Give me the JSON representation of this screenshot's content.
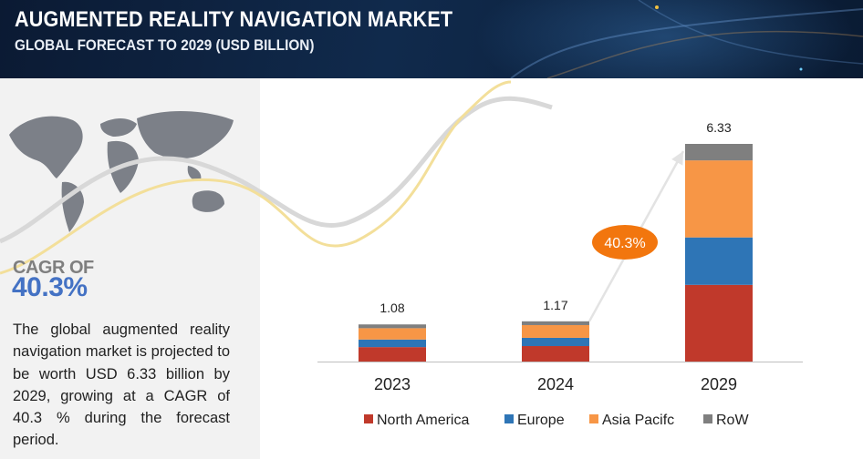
{
  "header": {
    "title": "AUGMENTED REALITY NAVIGATION MARKET",
    "subtitle": "GLOBAL FORECAST TO 2029 (USD BILLION)"
  },
  "sidebar": {
    "cagr_label": "CAGR OF",
    "cagr_value": "40.3%",
    "description": "The global augmented reality navigation market is projected to be worth USD 6.33 billion by 2029, growing at a CAGR of 40.3 % during the forecast period."
  },
  "colors": {
    "header_bg": "#0f2340",
    "north_america": "#c0392b",
    "europe": "#2e75b6",
    "asia_pacific": "#f79646",
    "row": "#7f7f7f",
    "cagr_badge": "#f2760e",
    "cagr_text": "#4472c4"
  },
  "chart_data": {
    "type": "bar",
    "stacked": true,
    "categories": [
      "2023",
      "2024",
      "2029"
    ],
    "totals": [
      "1.08",
      "1.17",
      "6.33"
    ],
    "series": [
      {
        "name": "North America",
        "color": "#c0392b",
        "values": [
          0.42,
          0.45,
          2.23
        ]
      },
      {
        "name": "Europe",
        "color": "#2e75b6",
        "values": [
          0.22,
          0.24,
          1.38
        ]
      },
      {
        "name": "Asia Pacifc",
        "color": "#f79646",
        "values": [
          0.33,
          0.37,
          2.24
        ]
      },
      {
        "name": "RoW",
        "color": "#7f7f7f",
        "values": [
          0.11,
          0.11,
          0.48
        ]
      }
    ],
    "annotation": "40.3%",
    "legend_position": "bottom",
    "grid": false,
    "ylim": [
      0,
      6.33
    ]
  }
}
